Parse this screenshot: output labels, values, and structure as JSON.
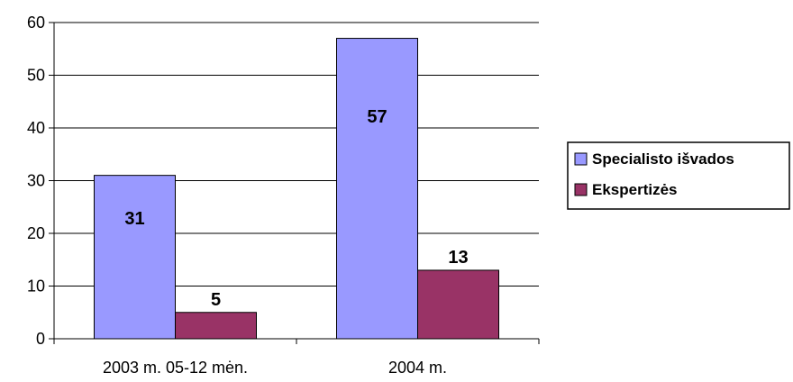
{
  "chart_data": {
    "type": "bar",
    "categories": [
      "2003 m. 05-12 mėn.",
      "2004 m."
    ],
    "series": [
      {
        "name": "Specialisto išvados",
        "values": [
          31,
          57
        ],
        "color": "#9999ff"
      },
      {
        "name": "Ekspertizės",
        "values": [
          5,
          13
        ],
        "color": "#993366"
      }
    ],
    "ylim": [
      0,
      60
    ],
    "yticks": [
      0,
      10,
      20,
      30,
      40,
      50,
      60
    ],
    "grid": true,
    "legend_position": "right",
    "data_labels": true,
    "title": "",
    "xlabel": "",
    "ylabel": ""
  }
}
